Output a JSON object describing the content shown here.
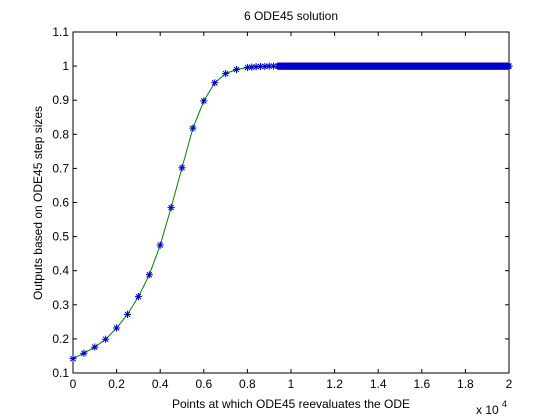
{
  "chart_data": {
    "type": "line",
    "title": "6 ODE45 solution",
    "xlabel": "Points at which ODE45 reevaluates the ODE",
    "ylabel": "Outputs based on ODE45 step sizes",
    "x_multiplier_label": "x 10",
    "x_multiplier_exponent": "4",
    "xlim": [
      0,
      2
    ],
    "ylim": [
      0.1,
      1.1
    ],
    "xticks": [
      0,
      0.2,
      0.4,
      0.6,
      0.8,
      1,
      1.2,
      1.4,
      1.6,
      1.8,
      2
    ],
    "xtick_labels": [
      "0",
      "0.2",
      "0.4",
      "0.6",
      "0.8",
      "1",
      "1.2",
      "1.4",
      "1.6",
      "1.8",
      "2"
    ],
    "yticks": [
      0.1,
      0.2,
      0.3,
      0.4,
      0.5,
      0.6,
      0.7,
      0.8,
      0.9,
      1,
      1.1
    ],
    "ytick_labels": [
      "0.1",
      "0.2",
      "0.3",
      "0.4",
      "0.5",
      "0.6",
      "0.7",
      "0.8",
      "0.9",
      "1",
      "1.1"
    ],
    "grid": false,
    "line_color": "#008000",
    "marker_color": "#0000cc",
    "marker": "asterisk",
    "series": [
      {
        "x": [
          0,
          0.05,
          0.1,
          0.15,
          0.2,
          0.25,
          0.3,
          0.35,
          0.4,
          0.45,
          0.5,
          0.55,
          0.6,
          0.65,
          0.7,
          0.75,
          0.8,
          0.82,
          0.84,
          0.86,
          0.88,
          0.9,
          0.92
        ],
        "y": [
          0.142,
          0.158,
          0.176,
          0.199,
          0.232,
          0.272,
          0.324,
          0.388,
          0.475,
          0.585,
          0.702,
          0.818,
          0.898,
          0.951,
          0.978,
          0.99,
          0.996,
          0.997,
          0.998,
          0.999,
          0.999,
          1.0,
          1.0
        ]
      }
    ],
    "dense_band": {
      "x_start": 0.94,
      "x_end": 2.0,
      "y": 1.0,
      "step": 0.0025
    }
  }
}
